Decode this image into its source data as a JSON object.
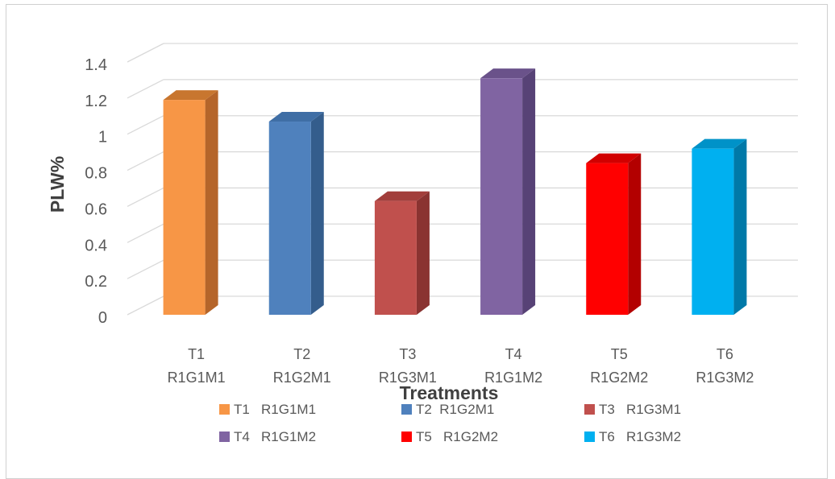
{
  "chart_data": {
    "type": "bar",
    "style": "3d-column",
    "categories": [
      [
        "T1",
        "R1G1M1"
      ],
      [
        "T2",
        "R1G2M1"
      ],
      [
        "T3",
        "R1G3M1"
      ],
      [
        "T4",
        "R1G1M2"
      ],
      [
        "T5",
        "R1G2M2"
      ],
      [
        "T6",
        "R1G3M2"
      ]
    ],
    "values": [
      1.19,
      1.07,
      0.63,
      1.31,
      0.84,
      0.92
    ],
    "colors": [
      "#F79646",
      "#4F81BD",
      "#C0504D",
      "#8064A2",
      "#FF0000",
      "#00B0F0"
    ],
    "side_colors": [
      "#B5652A",
      "#345D8C",
      "#8A3331",
      "#574276",
      "#B30000",
      "#0079A8"
    ],
    "top_colors": [
      "#C8762F",
      "#3F6EA5",
      "#A23E3B",
      "#6A528A",
      "#D10000",
      "#0092C8"
    ],
    "xlabel": "Treatments",
    "ylabel": "PLW%",
    "yticks": [
      "0",
      "0.2",
      "0.4",
      "0.6",
      "0.8",
      "1",
      "1.2",
      "1.4"
    ],
    "ylim": [
      0,
      1.4
    ],
    "grid": true,
    "legend": {
      "placement": "bottom",
      "entries": [
        "T1   R1G1M1",
        "T2  R1G2M1",
        "T3   R1G3M1",
        "T4   R1G1M2",
        "T5   R1G2M2",
        "T6   R1G3M2"
      ]
    }
  }
}
